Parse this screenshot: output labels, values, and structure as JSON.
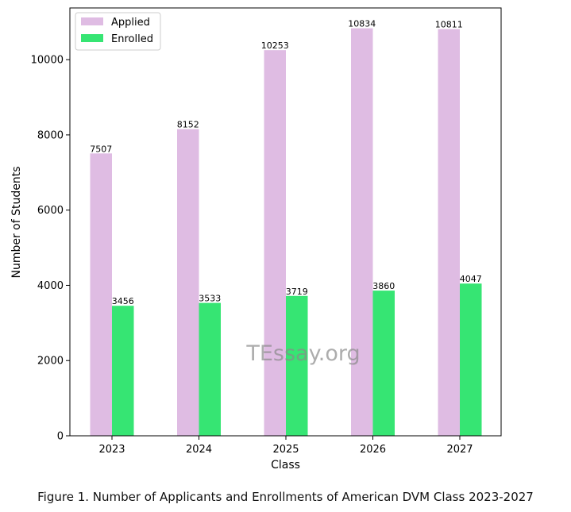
{
  "chart_data": {
    "type": "bar",
    "categories": [
      "2023",
      "2024",
      "2025",
      "2026",
      "2027"
    ],
    "series": [
      {
        "name": "Applied",
        "values": [
          7507,
          8152,
          10253,
          10834,
          10811
        ],
        "color": "#dfbce3"
      },
      {
        "name": "Enrolled",
        "values": [
          3456,
          3533,
          3719,
          3860,
          4047
        ],
        "color": "#36e573"
      }
    ],
    "xlabel": "Class",
    "ylabel": "Number of Students",
    "ylim": [
      0,
      11375
    ],
    "yticks": [
      0,
      2000,
      4000,
      6000,
      8000,
      10000
    ],
    "grid": false,
    "legend_position": "top-left",
    "watermark": "TEssay.org"
  },
  "caption": "Figure 1. Number of Applicants and Enrollments of American DVM Class 2023-2027"
}
